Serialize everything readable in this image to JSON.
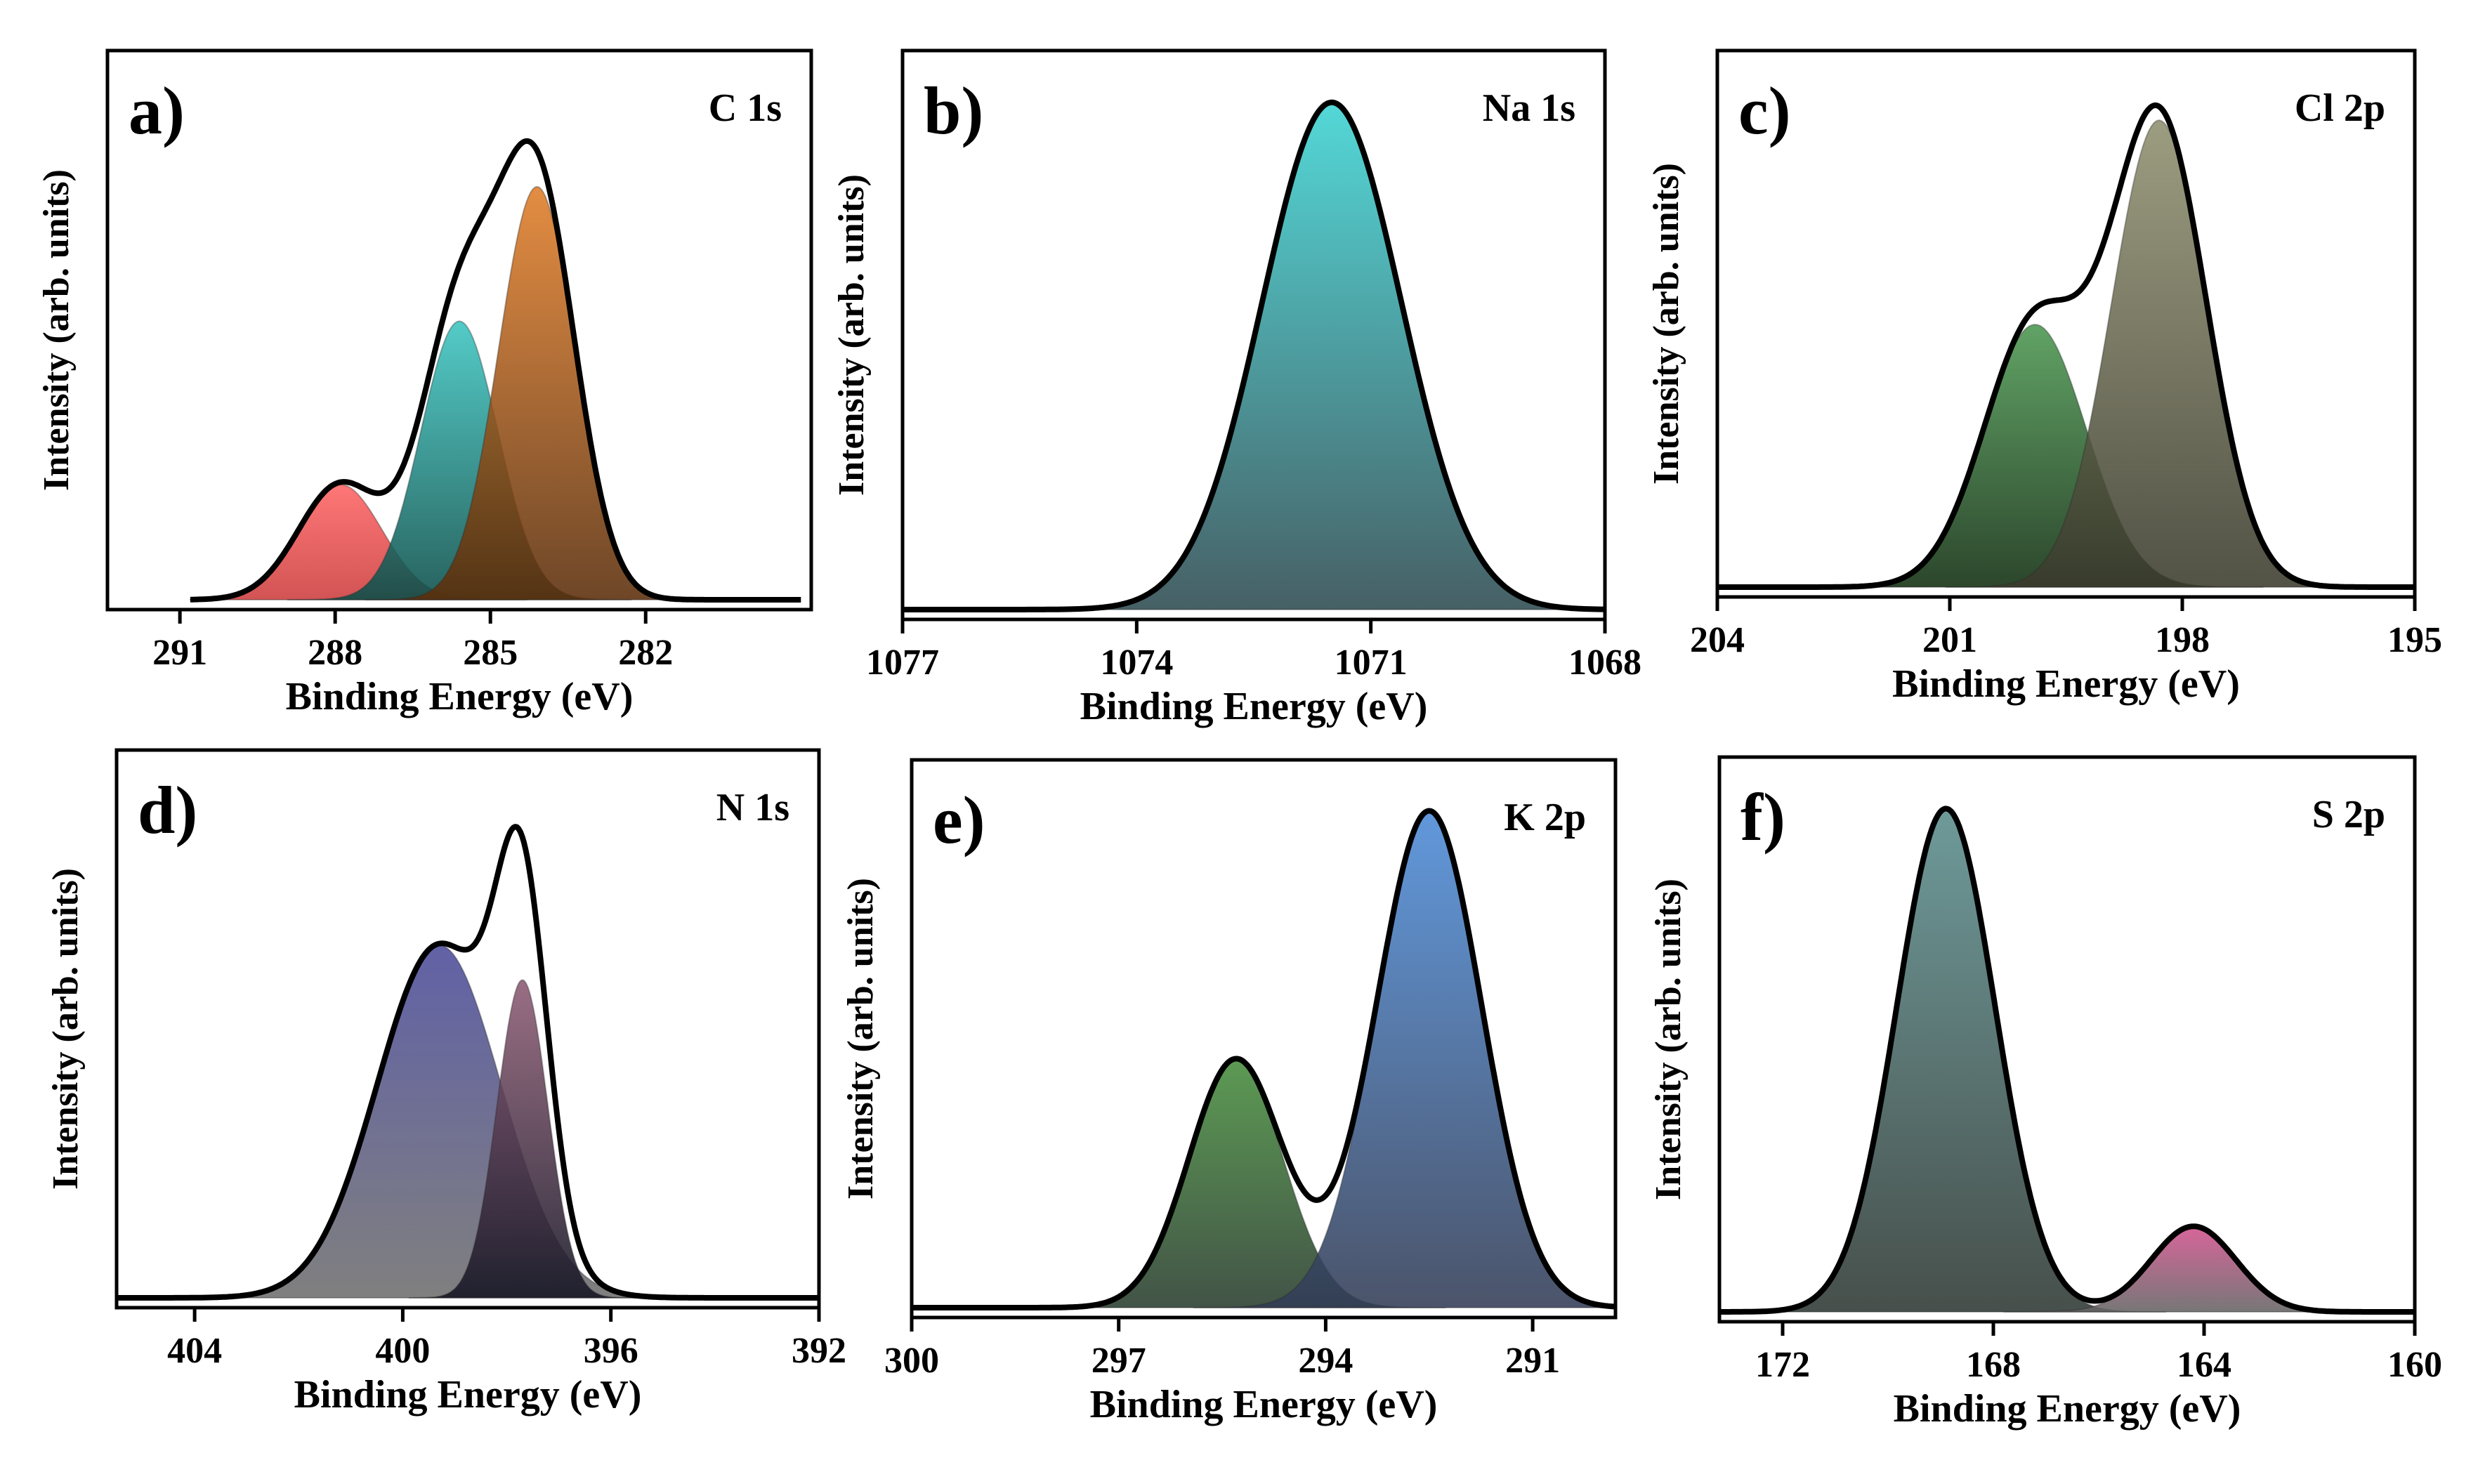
{
  "figure": {
    "panels_count": 6
  },
  "chart_data": [
    {
      "type": "area",
      "panel_letter": "a)",
      "title": "C 1s",
      "xlabel": "Binding Energy (eV)",
      "ylabel": "Intensity (arb. units)",
      "xlim": [
        292.4,
        278.8
      ],
      "x_reversed": true,
      "xticks": [
        291,
        288,
        285,
        282
      ],
      "x_data_range": [
        290.8,
        279.0
      ],
      "baseline": 0.0,
      "ylim": [
        0,
        1.12
      ],
      "envelope": {
        "name": "Envelope",
        "color": "#000000"
      },
      "series": [
        {
          "name": "Peak 287.9 eV",
          "center": 287.9,
          "amplitude": 0.24,
          "fwhm": 1.9,
          "color_top": "#ff6464",
          "color_bottom": "#cc3c3c"
        },
        {
          "name": "Peak 285.6 eV",
          "center": 285.6,
          "amplitude": 0.58,
          "fwhm": 1.75,
          "color_top": "#3cc4c0",
          "color_bottom": "#0a4d48"
        },
        {
          "name": "Peak 284.1 eV",
          "center": 284.1,
          "amplitude": 0.86,
          "fwhm": 1.75,
          "color_top": "#e07d28",
          "color_bottom": "#5a2d0a"
        }
      ]
    },
    {
      "type": "area",
      "panel_letter": "b)",
      "title": "Na 1s",
      "xlabel": "Binding Energy (eV)",
      "ylabel": "Intensity (arb. units)",
      "xlim": [
        1077,
        1068
      ],
      "x_reversed": true,
      "xticks": [
        1077,
        1074,
        1071,
        1068
      ],
      "x_data_range": [
        1077,
        1068
      ],
      "baseline": 0.0,
      "ylim": [
        0,
        1.08
      ],
      "envelope": {
        "name": "Envelope",
        "color": "#000000"
      },
      "series": [
        {
          "name": "Peak 1071.5 eV",
          "center": 1071.5,
          "amplitude": 1.0,
          "fwhm": 2.1,
          "color_top": "#3cd2d2",
          "color_bottom": "#2d4a50"
        }
      ]
    },
    {
      "type": "area",
      "panel_letter": "c)",
      "title": "Cl 2p",
      "xlabel": "Binding Energy (eV)",
      "ylabel": "Intensity (arb. units)",
      "xlim": [
        204,
        195
      ],
      "x_reversed": true,
      "xticks": [
        204,
        201,
        198,
        195
      ],
      "x_data_range": [
        204,
        195
      ],
      "baseline": 0.0,
      "ylim": [
        0,
        1.08
      ],
      "envelope": {
        "name": "Envelope",
        "color": "#000000"
      },
      "series": [
        {
          "name": "Peak 199.9 eV",
          "center": 199.9,
          "amplitude": 0.54,
          "fwhm": 1.55,
          "color_top": "#4b9650",
          "color_bottom": "#0f2d0f"
        },
        {
          "name": "Peak 198.3 eV",
          "center": 198.3,
          "amplitude": 0.96,
          "fwhm": 1.45,
          "color_top": "#8f8f6f",
          "color_bottom": "#3a3a2c"
        }
      ]
    },
    {
      "type": "area",
      "panel_letter": "d)",
      "title": "N 1s",
      "xlabel": "Binding Energy (eV)",
      "ylabel": "Intensity (arb. units)",
      "xlim": [
        405.5,
        392
      ],
      "x_reversed": true,
      "xticks": [
        404,
        400,
        396,
        392
      ],
      "x_data_range": [
        405.5,
        392
      ],
      "baseline": 0.0,
      "ylim": [
        0,
        1.08
      ],
      "envelope": {
        "name": "Envelope",
        "color": "#000000"
      },
      "series": [
        {
          "name": "Peak 399.3 eV",
          "center": 399.3,
          "amplitude": 0.71,
          "fwhm": 2.8,
          "color_top": "#4b4b9a",
          "color_bottom": "#6e6e6e"
        },
        {
          "name": "Peak 397.7 eV",
          "center": 397.7,
          "amplitude": 0.64,
          "fwhm": 1.15,
          "color_top": "#8c5a73",
          "color_bottom": "#141423"
        }
      ]
    },
    {
      "type": "area",
      "panel_letter": "e)",
      "title": "K 2p",
      "xlabel": "Binding Energy (eV)",
      "ylabel": "Intensity (arb. units)",
      "xlim": [
        300,
        289.8
      ],
      "x_reversed": true,
      "xticks": [
        300,
        297,
        294,
        291
      ],
      "x_data_range": [
        300,
        289.8
      ],
      "baseline": 0.0,
      "ylim": [
        0,
        1.08
      ],
      "envelope": {
        "name": "Envelope",
        "color": "#000000"
      },
      "series": [
        {
          "name": "Peak 295.3 eV",
          "center": 295.3,
          "amplitude": 0.5,
          "fwhm": 1.6,
          "color_top": "#468c3c",
          "color_bottom": "#283c2d"
        },
        {
          "name": "Peak 292.5 eV",
          "center": 292.5,
          "amplitude": 1.0,
          "fwhm": 1.8,
          "color_top": "#4b8ad7",
          "color_bottom": "#323c55"
        }
      ]
    },
    {
      "type": "area",
      "panel_letter": "f)",
      "title": "S 2p",
      "xlabel": "Binding Energy (eV)",
      "ylabel": "Intensity (arb. units)",
      "xlim": [
        173.2,
        160
      ],
      "x_reversed": true,
      "xticks": [
        172,
        168,
        164,
        160
      ],
      "x_data_range": [
        173.2,
        160
      ],
      "baseline": 0.0,
      "ylim": [
        0,
        1.08
      ],
      "envelope": {
        "name": "Envelope",
        "color": "#000000"
      },
      "series": [
        {
          "name": "Peak 168.9 eV",
          "center": 168.9,
          "amplitude": 1.0,
          "fwhm": 2.2,
          "color_top": "#5a8c8c",
          "color_bottom": "#2d3732"
        },
        {
          "name": "Peak 164.2 eV",
          "center": 164.2,
          "amplitude": 0.17,
          "fwhm": 1.9,
          "color_top": "#d2508c",
          "color_bottom": "#646464"
        }
      ]
    }
  ]
}
